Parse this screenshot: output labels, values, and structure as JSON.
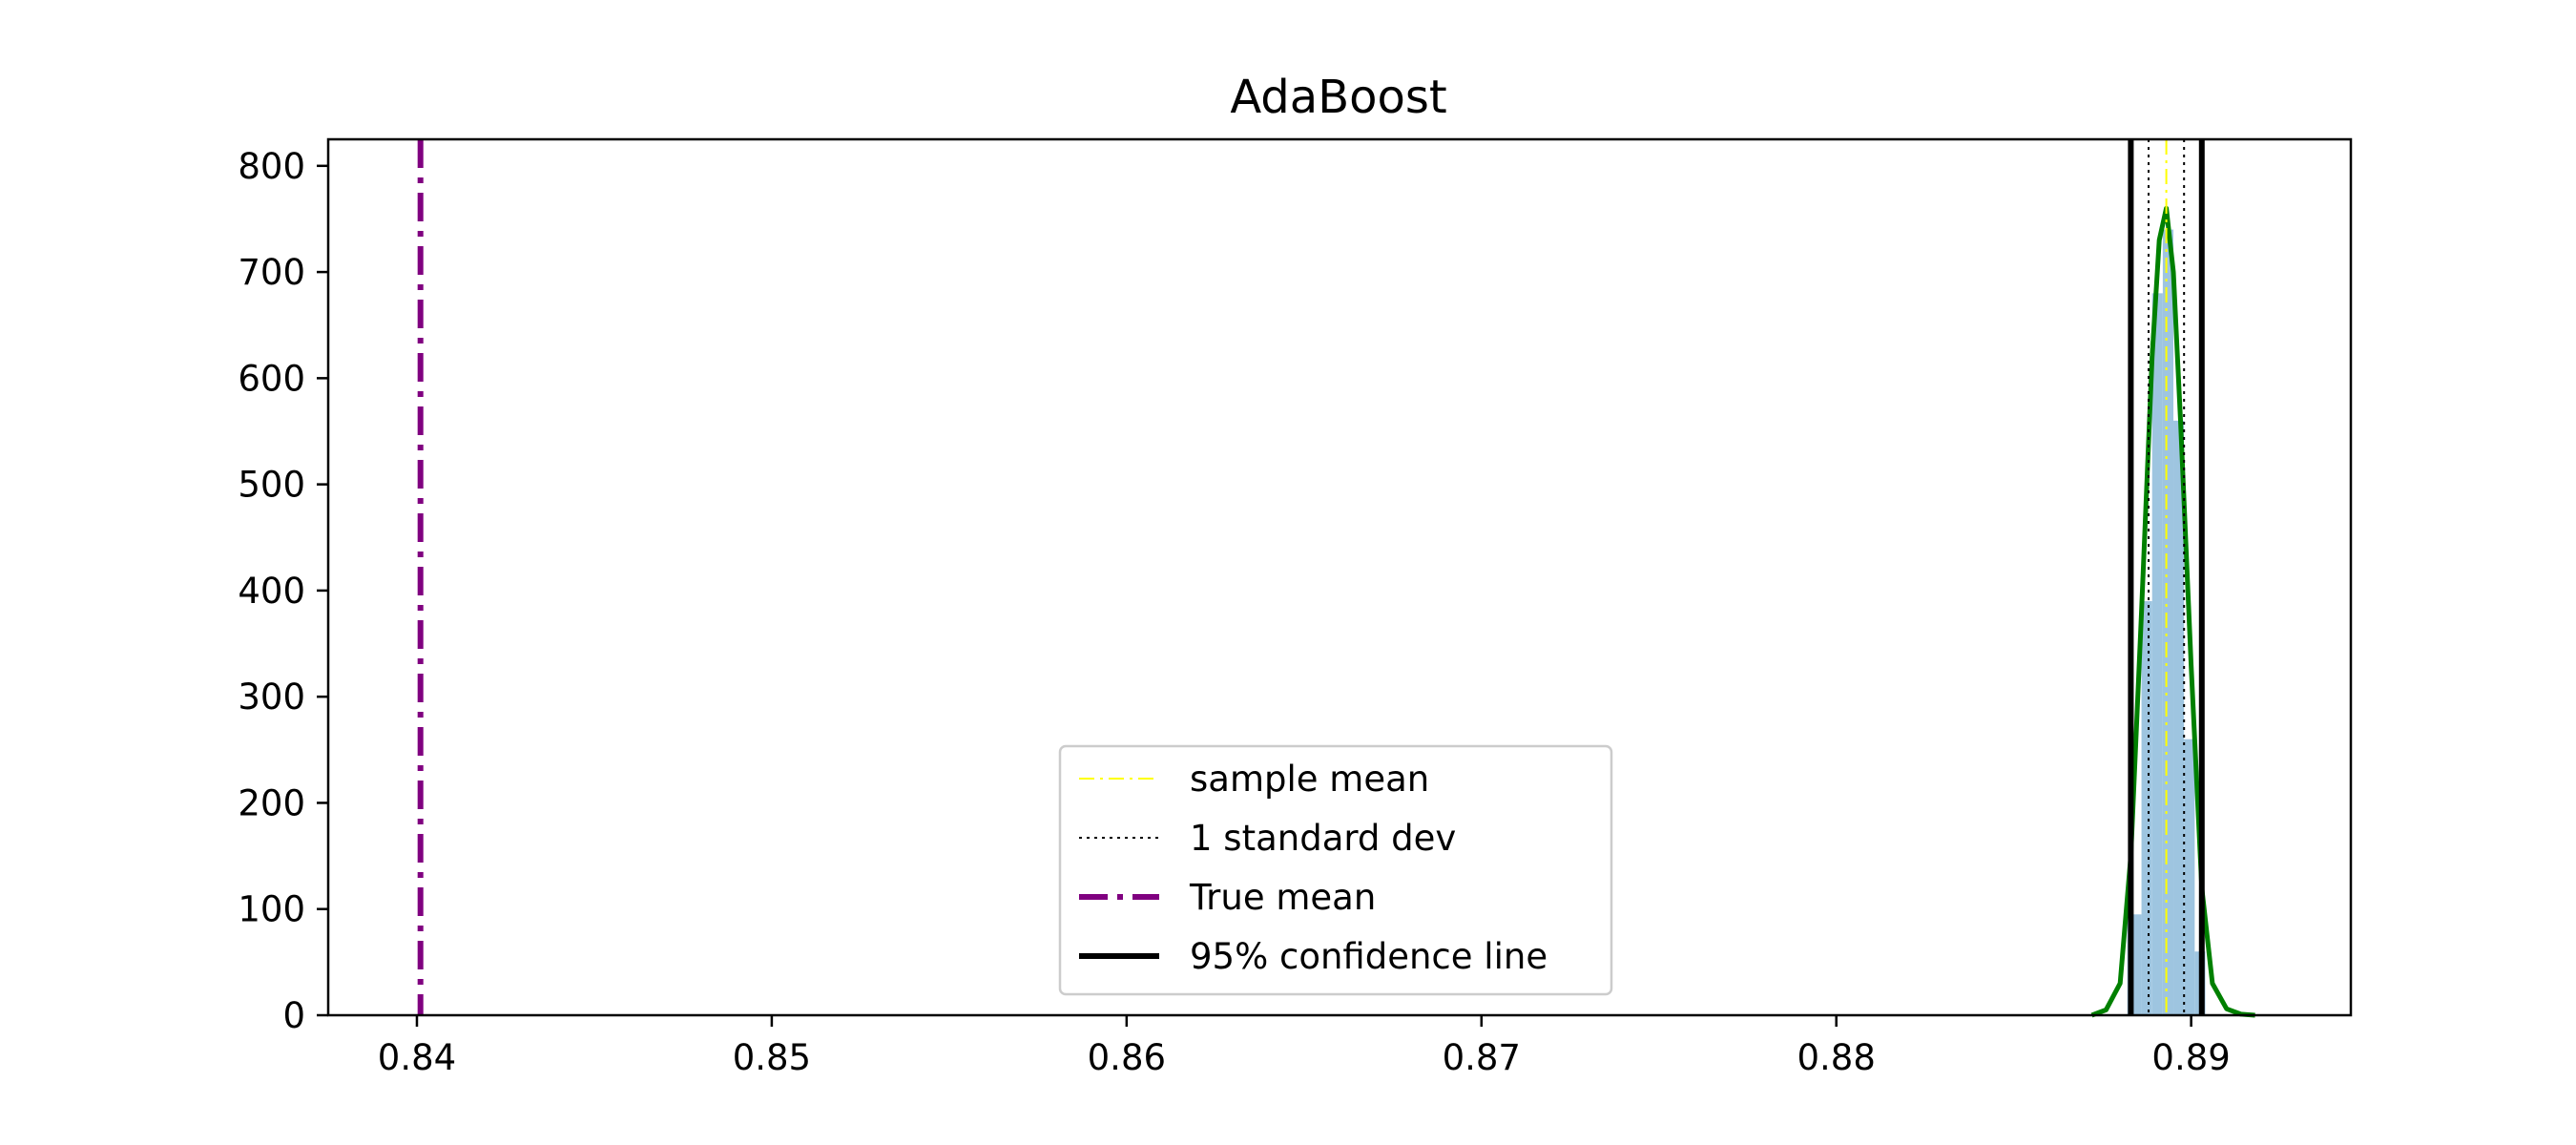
{
  "chart_data": {
    "type": "histogram",
    "title": "AdaBoost",
    "xlabel": "",
    "ylabel": "",
    "xlim": [
      0.8375,
      0.8945
    ],
    "ylim": [
      0,
      825
    ],
    "x_ticks": [
      0.84,
      0.85,
      0.86,
      0.87,
      0.88,
      0.89
    ],
    "x_tick_labels": [
      "0.84",
      "0.85",
      "0.86",
      "0.87",
      "0.88",
      "0.89"
    ],
    "y_ticks": [
      0,
      100,
      200,
      300,
      400,
      500,
      600,
      700,
      800
    ],
    "y_tick_labels": [
      "0",
      "100",
      "200",
      "300",
      "400",
      "500",
      "600",
      "700",
      "800"
    ],
    "grid": false,
    "legend_position": "lower-center",
    "histogram": {
      "color": "#9ec5e0",
      "bins": [
        {
          "x0": 0.8882,
          "x1": 0.8886,
          "value": 95
        },
        {
          "x0": 0.8886,
          "x1": 0.8889,
          "value": 390
        },
        {
          "x0": 0.8889,
          "x1": 0.8892,
          "value": 680
        },
        {
          "x0": 0.8892,
          "x1": 0.8895,
          "value": 740
        },
        {
          "x0": 0.8895,
          "x1": 0.8898,
          "value": 560
        },
        {
          "x0": 0.8898,
          "x1": 0.8901,
          "value": 260
        },
        {
          "x0": 0.8901,
          "x1": 0.8904,
          "value": 60
        }
      ]
    },
    "density_curve": {
      "color": "#008000",
      "x": [
        0.8872,
        0.8876,
        0.888,
        0.8883,
        0.8886,
        0.8889,
        0.8891,
        0.8893,
        0.8895,
        0.8897,
        0.89,
        0.8903,
        0.8906,
        0.891,
        0.8914,
        0.8918
      ],
      "y": [
        0,
        5,
        30,
        150,
        380,
        620,
        730,
        760,
        700,
        560,
        330,
        120,
        30,
        6,
        1,
        0
      ]
    },
    "lines": [
      {
        "label": "sample mean",
        "x": 0.8893,
        "color": "#ffff00",
        "style": "dashdot",
        "width": 2
      },
      {
        "label": "1 standard dev",
        "x": 0.8888,
        "color": "#000000",
        "style": "dotted",
        "width": 2
      },
      {
        "label": "1 standard dev",
        "x": 0.8898,
        "color": "#000000",
        "style": "dotted",
        "width": 2
      },
      {
        "label": "True mean",
        "x": 0.8401,
        "color": "#800080",
        "style": "dashdot",
        "width": 6
      },
      {
        "label": "95% confidence line",
        "x": 0.8883,
        "color": "#000000",
        "style": "solid",
        "width": 6
      },
      {
        "label": "95% confidence line",
        "x": 0.8903,
        "color": "#000000",
        "style": "solid",
        "width": 6
      }
    ],
    "legend": [
      {
        "label": "sample mean",
        "color": "#ffff00",
        "style": "dashdot",
        "width": 2
      },
      {
        "label": "1 standard dev",
        "color": "#000000",
        "style": "dotted",
        "width": 2
      },
      {
        "label": "True mean",
        "color": "#800080",
        "style": "dashdot",
        "width": 6
      },
      {
        "label": "95% confidence line",
        "color": "#000000",
        "style": "solid",
        "width": 6
      }
    ]
  }
}
